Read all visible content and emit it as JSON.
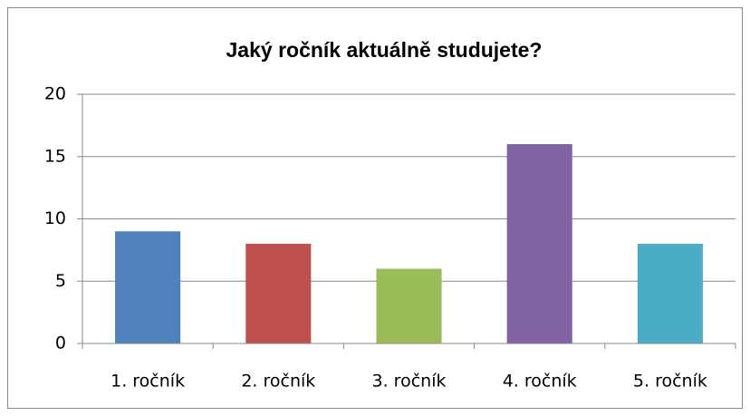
{
  "chart_data": {
    "type": "bar",
    "title": "Jaký ročník aktuálně studujete?",
    "categories": [
      "1. ročník",
      "2. ročník",
      "3. ročník",
      "4. ročník",
      "5. ročník"
    ],
    "values": [
      9,
      8,
      6,
      16,
      8
    ],
    "colors": [
      "#4f81bd",
      "#c0504d",
      "#9bbb59",
      "#8064a2",
      "#4bacc6"
    ],
    "ylim": [
      0,
      20
    ],
    "yticks": [
      0,
      5,
      10,
      15,
      20
    ],
    "grid": true
  }
}
